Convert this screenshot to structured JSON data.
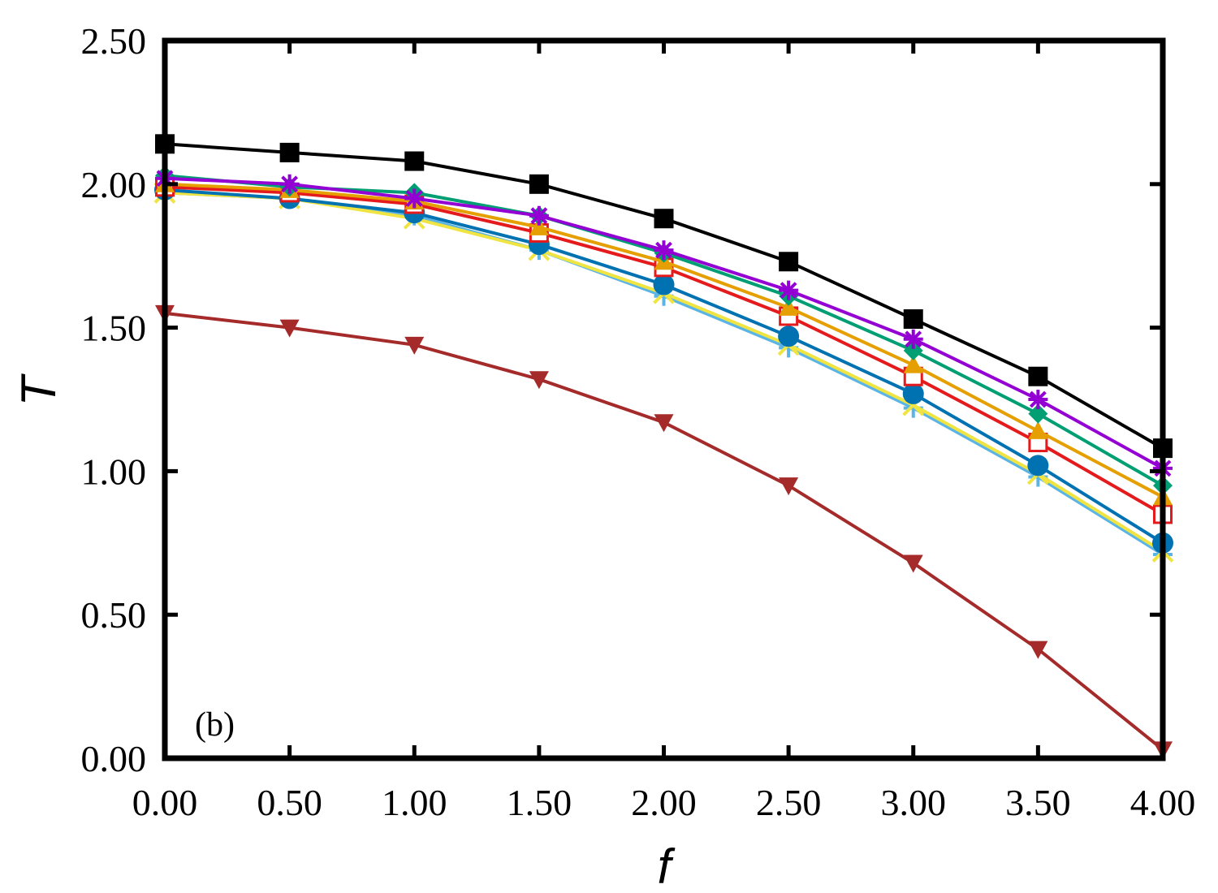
{
  "chart_data": {
    "type": "line",
    "title": "",
    "panel_label": "(b)",
    "xlabel": "f",
    "ylabel": "T",
    "xlim": [
      0,
      4
    ],
    "ylim": [
      0,
      2.5
    ],
    "x_ticks": [
      "0.00",
      "0.50",
      "1.00",
      "1.50",
      "2.00",
      "2.50",
      "3.00",
      "3.50",
      "4.00"
    ],
    "y_ticks": [
      "0.00",
      "0.50",
      "1.00",
      "1.50",
      "2.00",
      "2.50"
    ],
    "grid": false,
    "x": [
      0,
      0.5,
      1.0,
      1.5,
      2.0,
      2.5,
      3.0,
      3.5,
      4.0
    ],
    "series": [
      {
        "marker": "triangle-down",
        "color": "#a52a2a",
        "values": [
          1.55,
          1.5,
          1.44,
          1.32,
          1.17,
          0.95,
          0.68,
          0.38,
          0.03
        ]
      },
      {
        "marker": "plus",
        "color": "#5ab4e5",
        "values": [
          1.97,
          1.95,
          1.89,
          1.77,
          1.61,
          1.43,
          1.22,
          0.98,
          0.71
        ]
      },
      {
        "marker": "x",
        "color": "#f0e442",
        "values": [
          1.97,
          1.95,
          1.88,
          1.77,
          1.62,
          1.44,
          1.23,
          0.99,
          0.72
        ]
      },
      {
        "marker": "circle",
        "color": "#0072b2",
        "values": [
          1.98,
          1.95,
          1.9,
          1.79,
          1.65,
          1.47,
          1.27,
          1.02,
          0.75
        ]
      },
      {
        "marker": "square-open",
        "color": "#e41a1c",
        "values": [
          1.99,
          1.97,
          1.93,
          1.83,
          1.71,
          1.54,
          1.33,
          1.1,
          0.85
        ]
      },
      {
        "marker": "triangle-up",
        "color": "#e69f00",
        "values": [
          2.0,
          1.98,
          1.94,
          1.85,
          1.73,
          1.57,
          1.37,
          1.14,
          0.91
        ]
      },
      {
        "marker": "diamond",
        "color": "#009e73",
        "values": [
          2.03,
          1.99,
          1.97,
          1.89,
          1.76,
          1.61,
          1.42,
          1.2,
          0.95
        ]
      },
      {
        "marker": "asterisk",
        "color": "#9400d3",
        "values": [
          2.02,
          2.0,
          1.95,
          1.89,
          1.77,
          1.63,
          1.46,
          1.25,
          1.01
        ]
      },
      {
        "marker": "square",
        "color": "#000000",
        "values": [
          2.14,
          2.11,
          2.08,
          2.0,
          1.88,
          1.73,
          1.53,
          1.33,
          1.08
        ]
      }
    ]
  }
}
